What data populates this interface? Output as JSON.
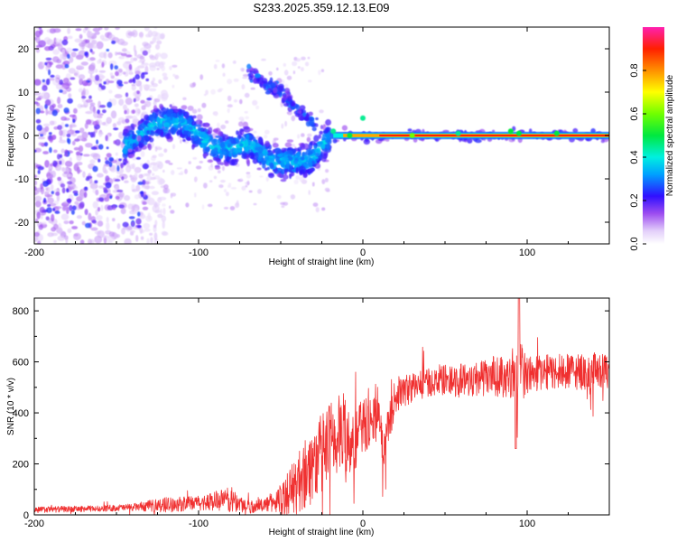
{
  "title": "S233.2025.359.12.13.E09",
  "chart_data": [
    {
      "type": "heatmap",
      "xlabel": "Height of straight line (km)",
      "ylabel": "Frequency (Hz)",
      "xlim": [
        -200,
        150
      ],
      "ylim": [
        -25,
        25
      ],
      "xticks": [
        -200,
        -100,
        0,
        100
      ],
      "yticks": [
        -20,
        -10,
        0,
        10,
        20
      ],
      "colorbar": {
        "label": "Normalized spectral amplitude",
        "range": [
          0,
          1
        ],
        "ticks": [
          "0.0",
          "0.2",
          "0.4",
          "0.6",
          "0.8"
        ],
        "tick_values": [
          0,
          0.2,
          0.4,
          0.6,
          0.8
        ]
      },
      "features": [
        {
          "desc": "diffuse noise",
          "x_range": [
            -200,
            -140
          ],
          "y_range": [
            -25,
            25
          ]
        },
        {
          "desc": "curved arc",
          "points": [
            [
              -140,
              -1
            ],
            [
              -125,
              3
            ],
            [
              -110,
              3
            ],
            [
              -100,
              0
            ],
            [
              -90,
              -3
            ],
            [
              -80,
              -3
            ],
            [
              -70,
              -2
            ],
            [
              -55,
              -6
            ],
            [
              -40,
              -6
            ],
            [
              -30,
              -5
            ],
            [
              -20,
              0
            ]
          ]
        },
        {
          "desc": "upper arc",
          "points": [
            [
              -70,
              15
            ],
            [
              -60,
              12
            ],
            [
              -50,
              10
            ],
            [
              -40,
              6
            ],
            [
              -30,
              3
            ]
          ]
        },
        {
          "desc": "zero-frequency line",
          "x_range": [
            -20,
            150
          ],
          "y": 0
        }
      ]
    },
    {
      "type": "line",
      "xlabel": "Height of straight line (km)",
      "ylabel": "SNR (10 * v/v)",
      "xlim": [
        -200,
        150
      ],
      "ylim": [
        0,
        850
      ],
      "xticks": [
        -200,
        -100,
        0,
        100
      ],
      "yticks": [
        0,
        200,
        400,
        600,
        800
      ],
      "series": [
        {
          "name": "SNR",
          "color": "#f03030",
          "envelope_x": [
            -200,
            -160,
            -140,
            -120,
            -100,
            -90,
            -80,
            -70,
            -60,
            -50,
            -40,
            -30,
            -20,
            -10,
            -5,
            0,
            10,
            12,
            20,
            30,
            40,
            50,
            60,
            70,
            80,
            90,
            95,
            100,
            110,
            120,
            130,
            140,
            150
          ],
          "envelope_mean": [
            20,
            25,
            30,
            40,
            45,
            55,
            60,
            30,
            40,
            60,
            120,
            200,
            280,
            330,
            280,
            350,
            390,
            250,
            470,
            500,
            520,
            530,
            530,
            535,
            540,
            550,
            580,
            550,
            560,
            560,
            560,
            560,
            560
          ],
          "envelope_amp": [
            12,
            12,
            14,
            30,
            28,
            40,
            50,
            25,
            25,
            60,
            120,
            150,
            170,
            160,
            120,
            110,
            90,
            80,
            70,
            60,
            55,
            60,
            70,
            70,
            80,
            90,
            150,
            80,
            70,
            70,
            70,
            70,
            70
          ]
        }
      ]
    }
  ]
}
